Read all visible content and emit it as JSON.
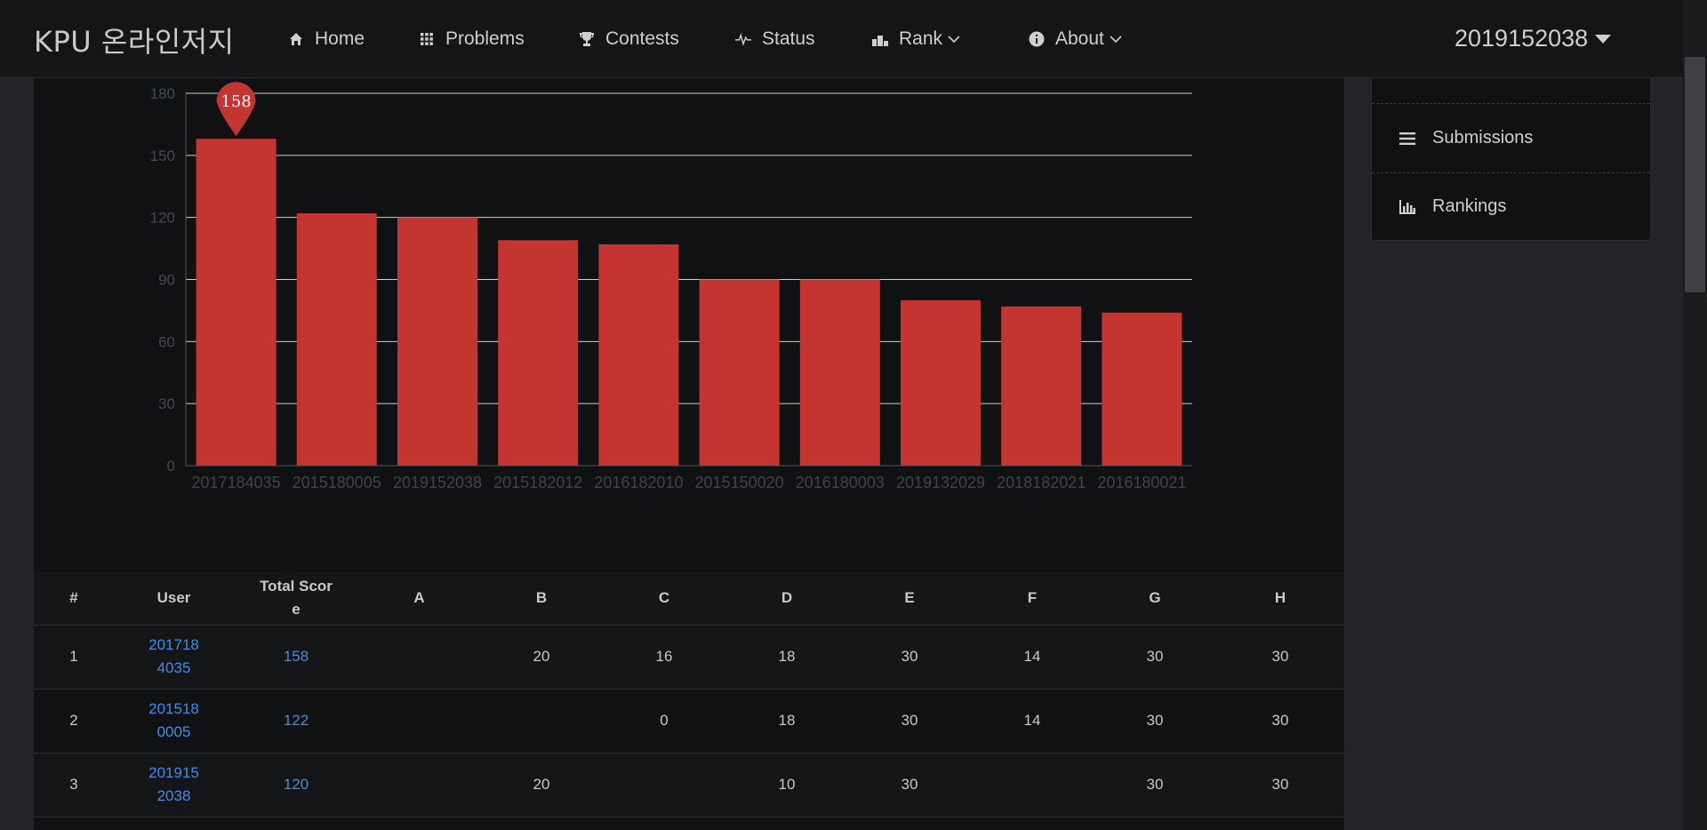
{
  "brand": "KPU 온라인저지",
  "nav": [
    {
      "label": "Home",
      "icon": "home-icon"
    },
    {
      "label": "Problems",
      "icon": "grid-icon"
    },
    {
      "label": "Contests",
      "icon": "trophy-icon"
    },
    {
      "label": "Status",
      "icon": "pulse-icon"
    },
    {
      "label": "Rank",
      "icon": "podium-icon"
    },
    {
      "label": "About",
      "icon": "info-icon"
    }
  ],
  "user": {
    "name": "2019152038"
  },
  "side_menu": {
    "items": [
      {
        "label": "Submissions",
        "icon": "list-icon"
      },
      {
        "label": "Rankings",
        "icon": "bar-chart-icon"
      }
    ]
  },
  "colors": {
    "bar": "#c43532",
    "link": "#3d8ee6",
    "background": "#101113"
  },
  "chart_data": {
    "type": "bar",
    "categories": [
      "2017184035",
      "2015180005",
      "2019152038",
      "2015182012",
      "2016182010",
      "2015150020",
      "2016180003",
      "2019132029",
      "2018182021",
      "2016180021"
    ],
    "values": [
      158,
      122,
      120,
      109,
      107,
      90,
      90,
      80,
      77,
      74
    ],
    "yticks": [
      "0",
      "30",
      "60",
      "90",
      "120",
      "150",
      "180"
    ],
    "ylim": [
      0,
      180
    ],
    "grid": true,
    "max_marker": "158"
  },
  "table": {
    "headers": [
      "#",
      "User",
      "Total Score",
      "A",
      "B",
      "C",
      "D",
      "E",
      "F",
      "G",
      "H"
    ],
    "rows": [
      {
        "rank": "1",
        "user": "2017184035",
        "total": "158",
        "scores": [
          "",
          "20",
          "16",
          "18",
          "30",
          "14",
          "30",
          "30"
        ]
      },
      {
        "rank": "2",
        "user": "2015180005",
        "total": "122",
        "scores": [
          "",
          "",
          "0",
          "18",
          "30",
          "14",
          "30",
          "30"
        ]
      },
      {
        "rank": "3",
        "user": "2019152038",
        "total": "120",
        "scores": [
          "",
          "20",
          "",
          "10",
          "30",
          "",
          "30",
          "30"
        ]
      }
    ]
  }
}
